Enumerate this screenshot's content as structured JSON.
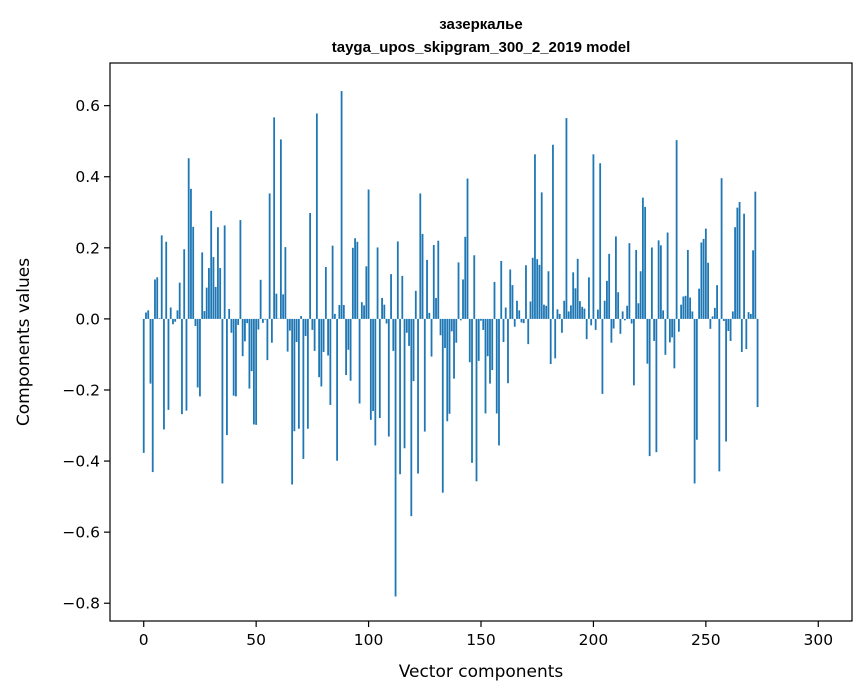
{
  "chart_data": {
    "type": "bar",
    "title": "зазеркалье",
    "subtitle": "tayga_upos_skipgram_300_2_2019 model",
    "xlabel": "Vector components",
    "ylabel": "Components values",
    "xlim": [
      -15,
      315
    ],
    "ylim": [
      -0.85,
      0.72
    ],
    "xticks": [
      0,
      50,
      100,
      150,
      200,
      250,
      300
    ],
    "xtick_labels": [
      "0",
      "50",
      "100",
      "150",
      "200",
      "250",
      "300"
    ],
    "yticks": [
      -0.8,
      -0.6,
      -0.4,
      -0.2,
      0.0,
      0.2,
      0.4,
      0.6
    ],
    "ytick_labels": [
      "−0.8",
      "−0.6",
      "−0.4",
      "−0.2",
      "0.0",
      "0.2",
      "0.4",
      "0.6"
    ],
    "bar_color": "#1f77b4",
    "bar_width": 0.8,
    "grid": false,
    "values": [
      -0.377,
      0.018,
      0.024,
      -0.182,
      -0.431,
      0.111,
      0.117,
      0.002,
      0.235,
      -0.311,
      0.217,
      -0.256,
      0.032,
      -0.015,
      -0.008,
      0.024,
      0.102,
      -0.268,
      0.196,
      -0.258,
      0.452,
      0.366,
      0.259,
      -0.02,
      -0.193,
      -0.218,
      0.187,
      0.022,
      0.088,
      0.143,
      0.304,
      0.174,
      0.09,
      0.258,
      0.143,
      -0.463,
      0.263,
      -0.327,
      0.028,
      -0.039,
      -0.216,
      -0.218,
      -0.017,
      0.278,
      -0.105,
      -0.063,
      -0.012,
      -0.196,
      -0.147,
      -0.297,
      -0.298,
      -0.03,
      0.11,
      -0.011,
      -0.002,
      -0.116,
      0.353,
      -0.067,
      0.567,
      0.071,
      0.001,
      0.505,
      0.069,
      0.202,
      -0.092,
      -0.033,
      -0.466,
      -0.316,
      -0.065,
      -0.309,
      0.008,
      -0.394,
      -0.048,
      -0.309,
      0.298,
      -0.031,
      -0.09,
      0.578,
      -0.164,
      -0.19,
      -0.093,
      0.146,
      -0.103,
      -0.242,
      0.206,
      0.014,
      -0.399,
      0.039,
      0.641,
      0.039,
      -0.158,
      -0.087,
      -0.174,
      0.2,
      0.227,
      0.217,
      -0.238,
      0.047,
      0.038,
      0.148,
      0.364,
      -0.284,
      -0.259,
      -0.356,
      0.201,
      -0.279,
      0.059,
      0.04,
      -0.013,
      -0.331,
      0.126,
      -0.09,
      -0.781,
      0.218,
      -0.437,
      0.121,
      -0.364,
      -0.039,
      -0.076,
      -0.555,
      -0.175,
      0.079,
      -0.435,
      0.353,
      0.239,
      -0.317,
      0.166,
      0.017,
      -0.106,
      0.208,
      0.059,
      0.22,
      -0.046,
      -0.489,
      -0.082,
      -0.288,
      -0.267,
      -0.035,
      -0.168,
      -0.067,
      0.159,
      -0.004,
      0.111,
      0.231,
      0.395,
      -0.122,
      -0.405,
      0.179,
      -0.457,
      -0.118,
      -0.005,
      -0.031,
      -0.266,
      -0.105,
      -0.182,
      -0.144,
      0.104,
      -0.266,
      -0.356,
      0.163,
      -0.065,
      0.032,
      -0.181,
      0.139,
      0.095,
      -0.022,
      0.051,
      0.024,
      -0.01,
      -0.012,
      0.151,
      -0.071,
      0.049,
      0.172,
      0.463,
      0.168,
      0.152,
      0.356,
      0.04,
      0.037,
      0.134,
      -0.127,
      0.49,
      -0.111,
      0.027,
      0.014,
      -0.039,
      0.051,
      0.565,
      0.021,
      0.038,
      0.131,
      0.086,
      0.169,
      0.05,
      0.034,
      0.029,
      -0.057,
      0.117,
      -0.018,
      0.463,
      -0.031,
      0.026,
      0.438,
      -0.211,
      0.051,
      0.107,
      0.183,
      -0.067,
      -0.027,
      0.232,
      0.075,
      -0.042,
      0.021,
      -0.004,
      0.037,
      0.213,
      -0.013,
      -0.187,
      0.194,
      0.044,
      0.134,
      0.341,
      0.315,
      -0.126,
      -0.386,
      0.201,
      -0.062,
      -0.375,
      0.221,
      0.207,
      0.024,
      -0.101,
      0.243,
      -0.066,
      -0.052,
      -0.139,
      0.503,
      -0.036,
      0.04,
      0.063,
      0.065,
      0.194,
      0.06,
      0.021,
      -0.463,
      -0.34,
      0.085,
      0.215,
      0.225,
      0.254,
      0.158,
      -0.028,
      0.007,
      0.031,
      0.095,
      -0.429,
      0.396,
      -0.006,
      -0.345,
      -0.034,
      -0.062,
      0.021,
      0.258,
      0.313,
      0.329,
      -0.093,
      0.296,
      -0.085,
      0.019,
      0.014,
      0.193,
      0.358,
      -0.248
    ]
  }
}
